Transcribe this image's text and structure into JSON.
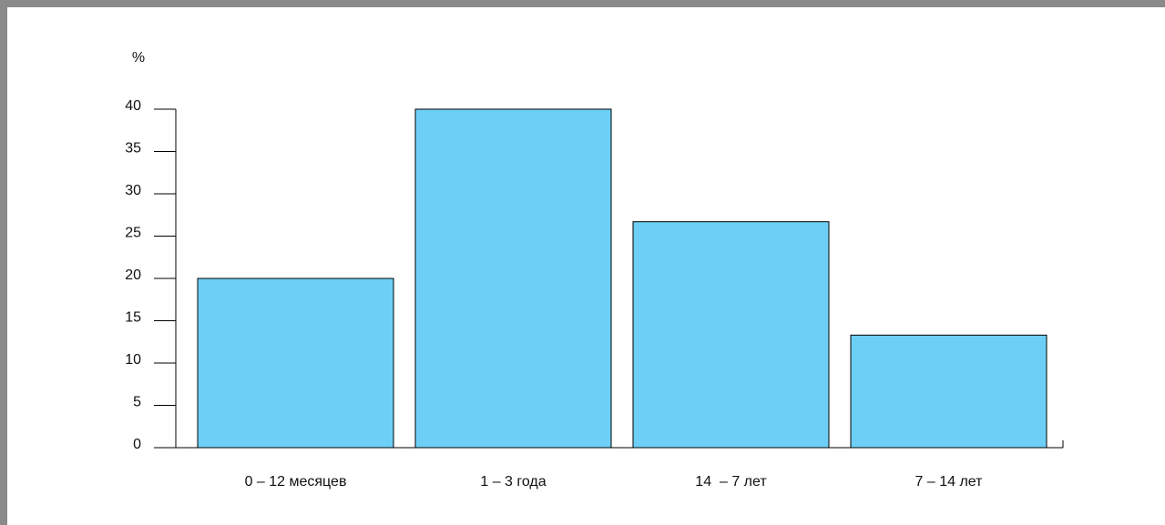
{
  "chart_data": {
    "type": "bar",
    "categories": [
      "0 – 12 месяцев",
      "1 – 3 года",
      "14  – 7 лет",
      "7 – 14 лет"
    ],
    "values": [
      20,
      40,
      26.7,
      13.3
    ],
    "ylabel": "%",
    "ylim": [
      0,
      40
    ],
    "yticks": [
      "0",
      "5",
      "10",
      "15",
      "20",
      "25",
      "30",
      "35",
      "40"
    ],
    "grid": false,
    "bar_color": "#6dcff6"
  }
}
